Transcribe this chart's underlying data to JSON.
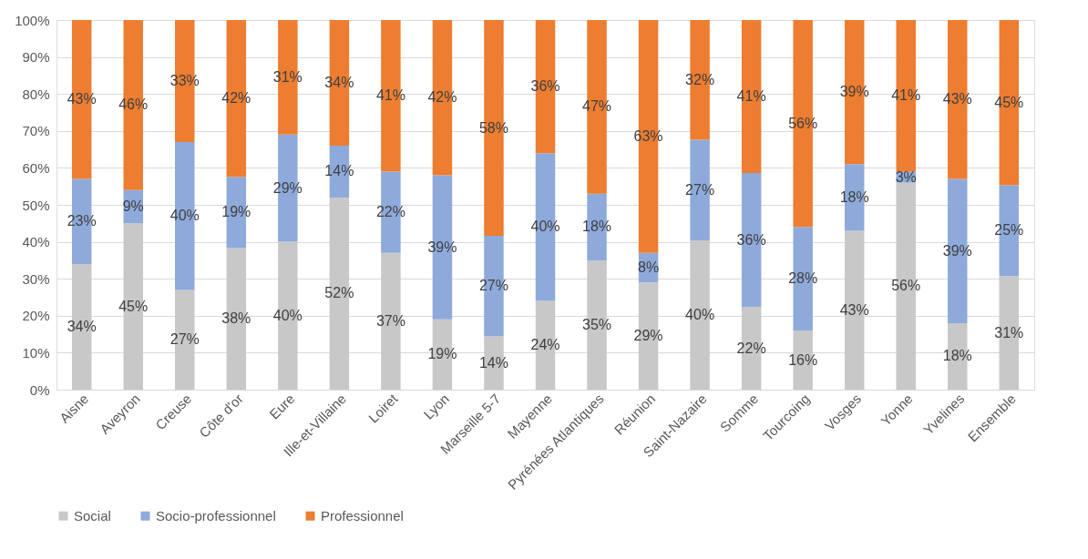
{
  "chart_data": {
    "type": "bar",
    "stacked": true,
    "categories": [
      "Aisne",
      "Aveyron",
      "Creuse",
      "Côte d'or",
      "Eure",
      "Ille-et-Villaine",
      "Loiret",
      "Lyon",
      "Marseille 5-7",
      "Mayenne",
      "Pyrénées Atlantiques",
      "Réunion",
      "Saint-Nazaire",
      "Somme",
      "Tourcoing",
      "Vosges",
      "Yonne",
      "Yvelines",
      "Ensemble"
    ],
    "series": [
      {
        "name": "Social",
        "color": "#c8c8c8",
        "values": [
          34,
          45,
          27,
          38.4,
          40,
          52,
          37,
          19,
          14.4,
          24,
          35,
          29,
          40.4,
          22.4,
          16,
          43,
          56,
          18,
          30.7
        ],
        "value_labels": [
          "34%",
          "45%",
          "27%",
          "38%",
          "40%",
          "52%",
          "37%",
          "19%",
          "14%",
          "24%",
          "35%",
          "29%",
          "40%",
          "22%",
          "16%",
          "43%",
          "56%",
          "18%",
          "31%"
        ]
      },
      {
        "name": "Socio-professionnel",
        "color": "#8eaadb",
        "values": [
          23,
          9,
          40,
          19.2,
          29,
          14,
          22,
          39,
          27.2,
          40,
          18,
          8,
          27.2,
          36.2,
          28,
          18,
          3,
          39,
          24.6
        ],
        "value_labels": [
          "23%",
          "9%",
          "40%",
          "19%",
          "29%",
          "14%",
          "22%",
          "39%",
          "27%",
          "40%",
          "18%",
          "8%",
          "27%",
          "36%",
          "28%",
          "18%",
          "3%",
          "39%",
          "25%"
        ]
      },
      {
        "name": "Professionnel",
        "color": "#ed7d31",
        "values": [
          43,
          46,
          33,
          42.4,
          31,
          34,
          41,
          42,
          58.4,
          36,
          47,
          63,
          32.4,
          41.4,
          56,
          39,
          41,
          43,
          44.7
        ],
        "value_labels": [
          "43%",
          "46%",
          "33%",
          "42%",
          "31%",
          "34%",
          "41%",
          "42%",
          "58%",
          "36%",
          "47%",
          "63%",
          "32%",
          "41%",
          "56%",
          "39%",
          "41%",
          "43%",
          "45%"
        ]
      }
    ],
    "ylim": [
      0,
      100
    ],
    "yticks": [
      {
        "value": 0,
        "label": "0%"
      },
      {
        "value": 10,
        "label": "10%"
      },
      {
        "value": 20,
        "label": "20%"
      },
      {
        "value": 30,
        "label": "30%"
      },
      {
        "value": 40,
        "label": "40%"
      },
      {
        "value": 50,
        "label": "50%"
      },
      {
        "value": 60,
        "label": "60%"
      },
      {
        "value": 70,
        "label": "70%"
      },
      {
        "value": 80,
        "label": "80%"
      },
      {
        "value": 90,
        "label": "90%"
      },
      {
        "value": 100,
        "label": "100%"
      }
    ],
    "grid": "y",
    "legend": "bottom"
  }
}
